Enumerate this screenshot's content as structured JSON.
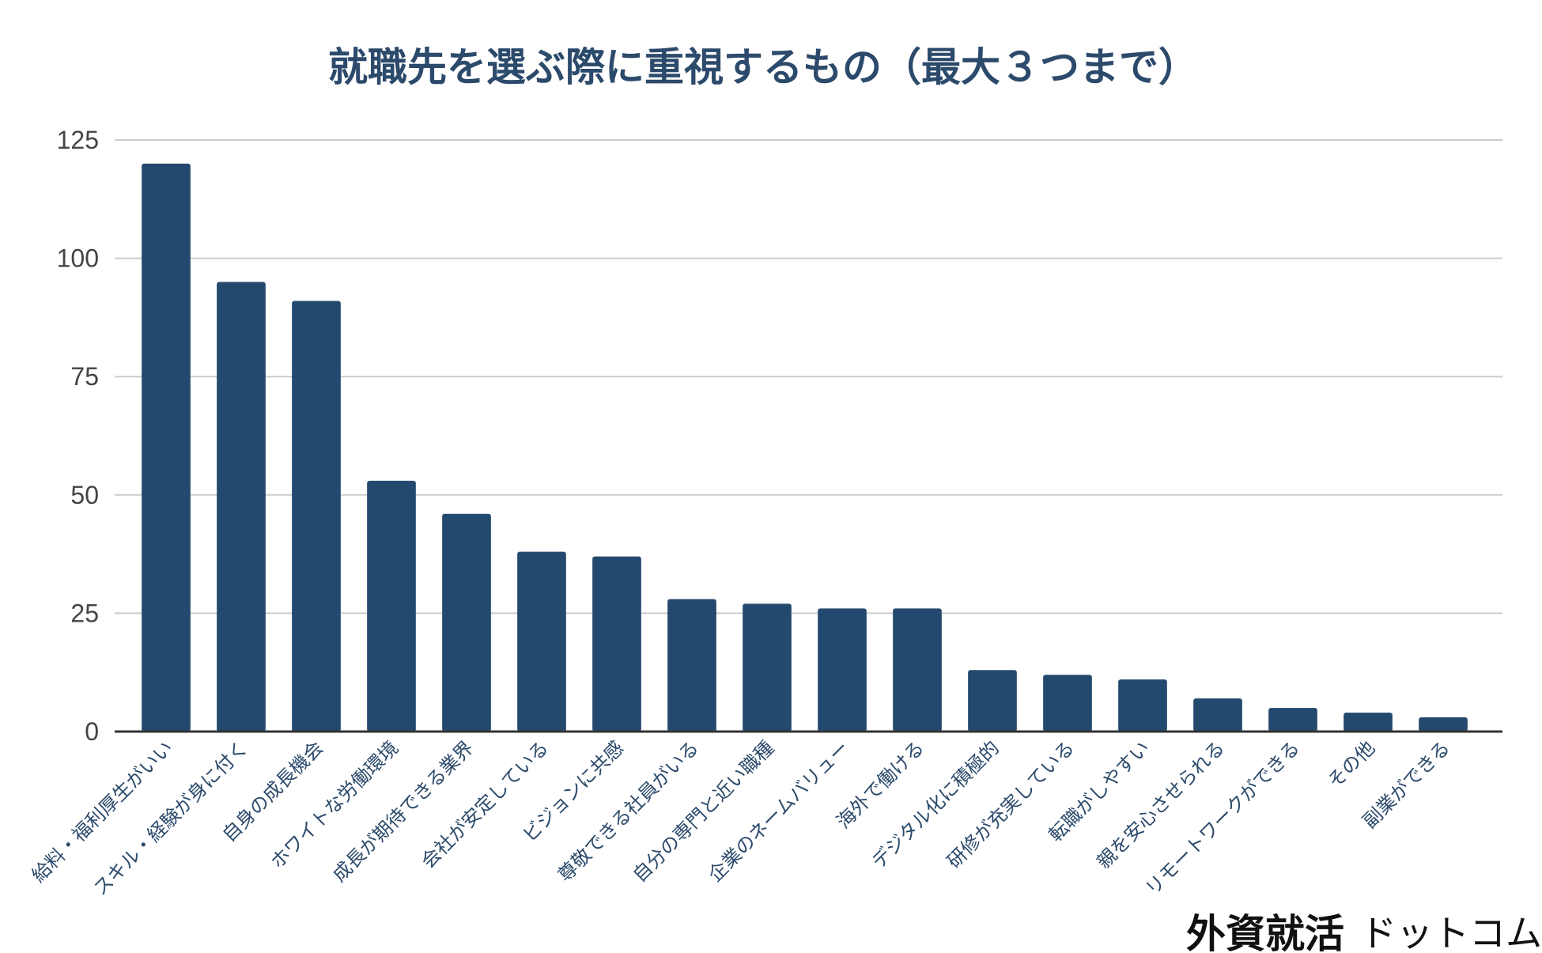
{
  "chart_data": {
    "type": "bar",
    "title": "就職先を選ぶ際に重視するもの（最大３つまで）",
    "xlabel": "",
    "ylabel": "",
    "ylim": [
      0,
      125
    ],
    "yticks": [
      0,
      25,
      50,
      75,
      100,
      125
    ],
    "grid": true,
    "colors": {
      "bar": "#24496e",
      "title": "#2c4a6b"
    },
    "categories": [
      "給料・福利厚生がいい",
      "スキル・経験が身に付く",
      "自身の成長機会",
      "ホワイトな労働環境",
      "成長が期待できる業界",
      "会社が安定している",
      "ビジョンに共感",
      "尊敬できる社員がいる",
      "自分の専門と近い職種",
      "企業のネームバリュー",
      "海外で働ける",
      "デジタル化に積極的",
      "研修が充実している",
      "転職がしやすい",
      "親を安心させられる",
      "リモートワークができる",
      "その他",
      "副業ができる"
    ],
    "values": [
      120,
      95,
      91,
      53,
      46,
      38,
      37,
      28,
      27,
      26,
      26,
      13,
      12,
      11,
      7,
      5,
      4,
      3
    ]
  },
  "watermark": {
    "main": "外資就活",
    "sub": "ドットコム"
  }
}
